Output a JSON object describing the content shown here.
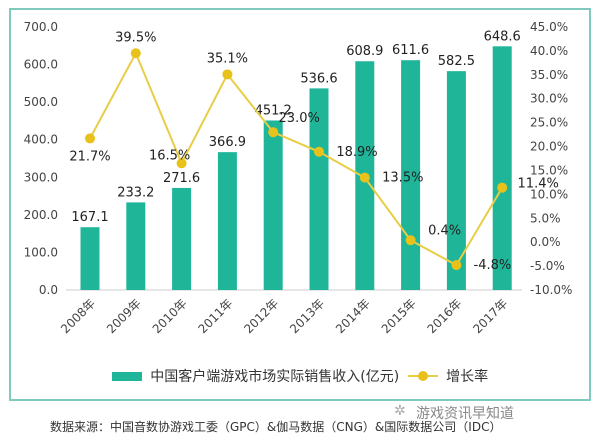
{
  "chart_data": {
    "type": "bar+line",
    "categories": [
      "2008年",
      "2009年",
      "2010年",
      "2011年",
      "2012年",
      "2013年",
      "2014年",
      "2015年",
      "2016年",
      "2017年"
    ],
    "series": [
      {
        "name": "中国客户端游戏市场实际销售收入(亿元)",
        "type": "bar",
        "axis": "left",
        "color": "#1fb598",
        "values": [
          167.1,
          233.2,
          271.6,
          366.9,
          451.2,
          536.6,
          608.9,
          611.6,
          582.5,
          648.6
        ],
        "labels": [
          "167.1",
          "233.2",
          "271.6",
          "366.9",
          "451.2",
          "536.6",
          "608.9",
          "611.6",
          "582.5",
          "648.6"
        ]
      },
      {
        "name": "增长率",
        "type": "line",
        "axis": "right",
        "color": "#e8c21a",
        "values": [
          21.7,
          39.5,
          16.5,
          35.1,
          23.0,
          18.9,
          13.5,
          0.4,
          -4.8,
          11.4
        ],
        "labels": [
          "21.7%",
          "39.5%",
          "16.5%",
          "35.1%",
          "23.0%",
          "18.9%",
          "13.5%",
          "0.4%",
          "-4.8%",
          "11.4%"
        ]
      }
    ],
    "left_axis": {
      "range": [
        0,
        700
      ],
      "ticks": [
        "0.0",
        "100.0",
        "200.0",
        "300.0",
        "400.0",
        "500.0",
        "600.0",
        "700.0"
      ]
    },
    "right_axis": {
      "range": [
        -10,
        45
      ],
      "ticks": [
        "-10.0%",
        "-5.0%",
        "0.0%",
        "5.0%",
        "10.0%",
        "15.0%",
        "20.0%",
        "25.0%",
        "30.0%",
        "35.0%",
        "40.0%",
        "45.0%"
      ]
    },
    "grid": false,
    "legend": "bottom"
  },
  "source": "数据来源：中国音数协游戏工委（GPC）&伽马数据（CNG）&国际数据公司（IDC）",
  "watermark": "游戏资讯早知道"
}
